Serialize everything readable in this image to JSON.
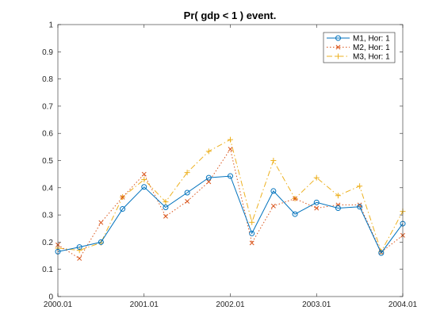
{
  "chart_data": {
    "type": "line",
    "title": "Pr( gdp < 1 ) event.",
    "xlabel": "",
    "ylabel": "",
    "xlim": [
      0,
      16
    ],
    "ylim": [
      0,
      1
    ],
    "x_ticks": [
      {
        "pos": 0,
        "label": "2000.01"
      },
      {
        "pos": 4,
        "label": "2001.01"
      },
      {
        "pos": 8,
        "label": "2002.01"
      },
      {
        "pos": 12,
        "label": "2003.01"
      },
      {
        "pos": 16,
        "label": "2004.01"
      }
    ],
    "y_ticks": [
      {
        "pos": 0,
        "label": "0"
      },
      {
        "pos": 0.1,
        "label": "0.1"
      },
      {
        "pos": 0.2,
        "label": "0.2"
      },
      {
        "pos": 0.3,
        "label": "0.3"
      },
      {
        "pos": 0.4,
        "label": "0.4"
      },
      {
        "pos": 0.5,
        "label": "0.5"
      },
      {
        "pos": 0.6,
        "label": "0.6"
      },
      {
        "pos": 0.7,
        "label": "0.7"
      },
      {
        "pos": 0.8,
        "label": "0.8"
      },
      {
        "pos": 0.9,
        "label": "0.9"
      },
      {
        "pos": 1,
        "label": "1"
      }
    ],
    "x": [
      0,
      1,
      2,
      3,
      4,
      5,
      6,
      7,
      8,
      9,
      10,
      11,
      12,
      13,
      14,
      15,
      16
    ],
    "legend_position": "top-right",
    "grid": false,
    "series": [
      {
        "name": "M1, Hor: 1",
        "color": "#0072bd",
        "line_style": "solid",
        "marker": "circle",
        "values": [
          0.165,
          0.182,
          0.2,
          0.322,
          0.403,
          0.328,
          0.382,
          0.437,
          0.443,
          0.232,
          0.388,
          0.303,
          0.346,
          0.325,
          0.33,
          0.16,
          0.268
        ]
      },
      {
        "name": "M2, Hor: 1",
        "color": "#d95319",
        "line_style": "dotted",
        "marker": "x",
        "values": [
          0.19,
          0.14,
          0.272,
          0.365,
          0.45,
          0.295,
          0.35,
          0.422,
          0.542,
          0.197,
          0.333,
          0.36,
          0.325,
          0.337,
          0.337,
          0.163,
          0.225
        ]
      },
      {
        "name": "M3, Hor: 1",
        "color": "#edb120",
        "line_style": "dashdot",
        "marker": "plus",
        "values": [
          0.178,
          0.17,
          0.198,
          0.366,
          0.43,
          0.348,
          0.456,
          0.534,
          0.577,
          0.273,
          0.5,
          0.36,
          0.437,
          0.371,
          0.406,
          0.165,
          0.313
        ]
      }
    ]
  }
}
